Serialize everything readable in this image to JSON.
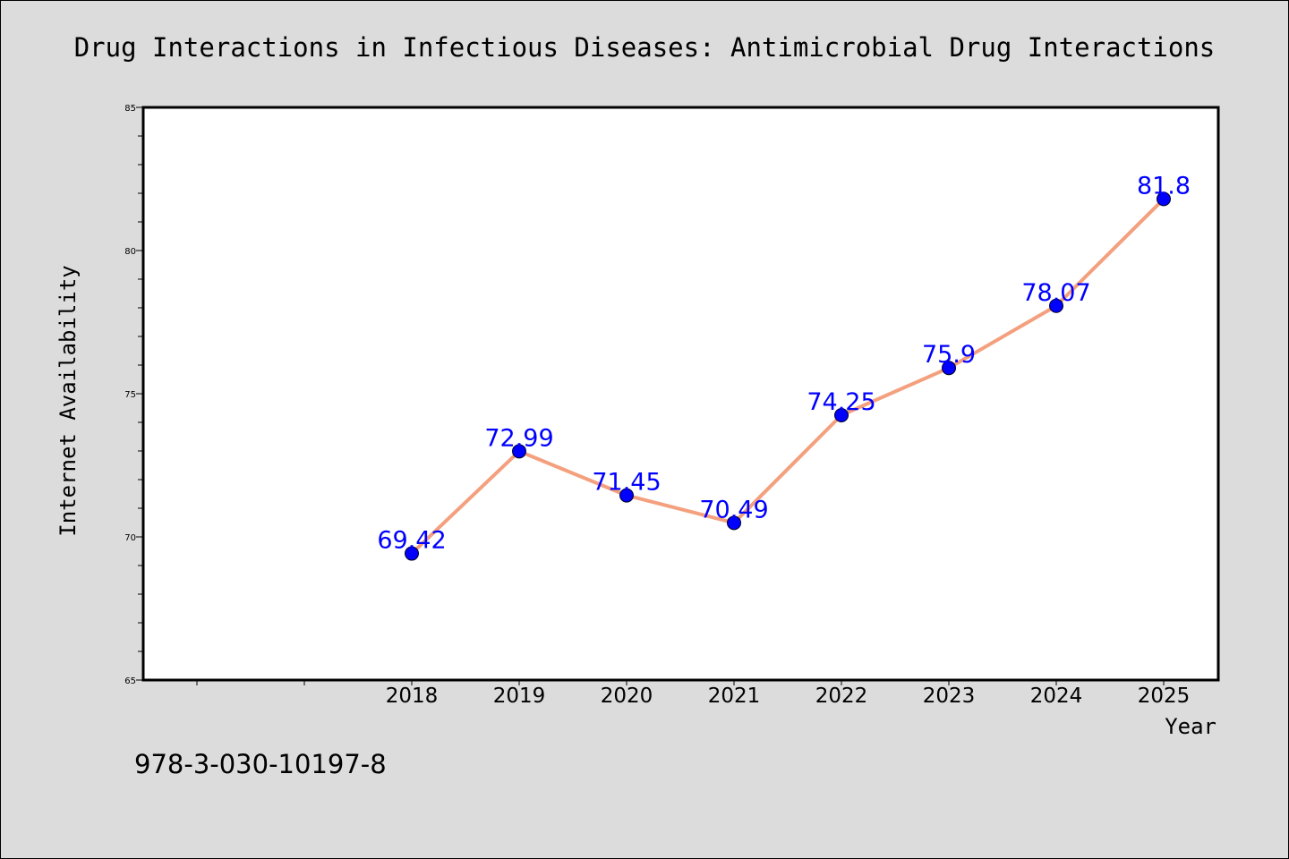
{
  "footer_code": "978-3-030-10197-8",
  "colors": {
    "background": "#dcdcdc",
    "plot_background": "#ffffff",
    "line": "#f4a07e",
    "marker": "#0000ff",
    "label": "#0000ff",
    "axis": "#000000"
  },
  "chart_data": {
    "type": "line",
    "title": "Drug Interactions in Infectious Diseases: Antimicrobial Drug Interactions",
    "xlabel": "Year",
    "ylabel": "Internet Availability",
    "x": [
      "2018",
      "2019",
      "2020",
      "2021",
      "2022",
      "2023",
      "2024",
      "2025"
    ],
    "y": [
      69.42,
      72.99,
      71.45,
      70.49,
      74.25,
      75.9,
      78.07,
      81.8
    ],
    "data_labels": [
      "69.42",
      "72.99",
      "71.45",
      "70.49",
      "74.25",
      "75.9",
      "78.07",
      "81.8"
    ],
    "ylim": [
      65,
      85
    ],
    "yticks": [
      "65",
      "70",
      "75",
      "80",
      "85"
    ],
    "grid": false,
    "legend": "none"
  }
}
